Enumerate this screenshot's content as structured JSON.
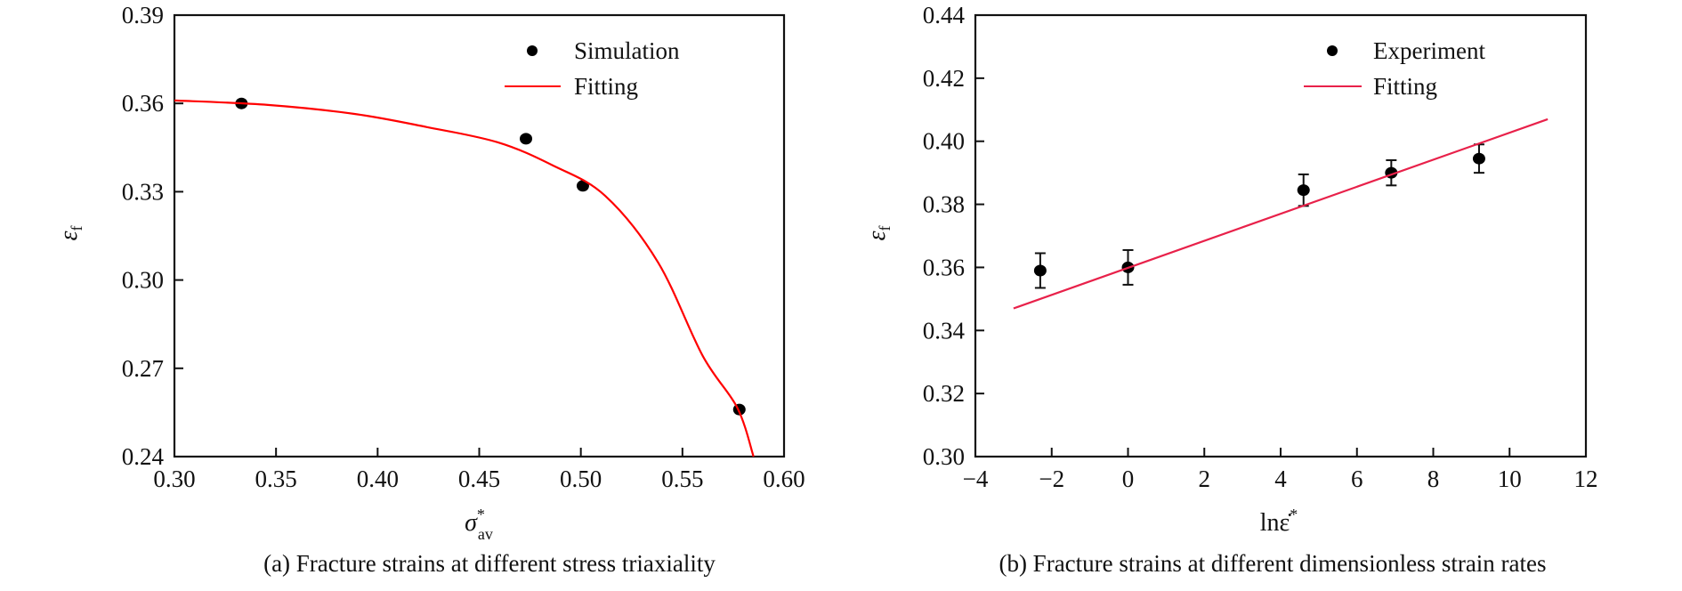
{
  "chart_data": [
    {
      "id": "a",
      "type": "scatter",
      "caption": "(a) Fracture strains at different stress triaxiality",
      "xlabel": "σ",
      "xlabel_sup": "*",
      "xlabel_sub": "av",
      "ylabel": "ε",
      "ylabel_sub": "f",
      "xlim": [
        0.3,
        0.6
      ],
      "ylim": [
        0.24,
        0.39
      ],
      "xticks": [
        0.3,
        0.35,
        0.4,
        0.45,
        0.5,
        0.55,
        0.6
      ],
      "xtick_labels": [
        "0.30",
        "0.35",
        "0.40",
        "0.45",
        "0.50",
        "0.55",
        "0.60"
      ],
      "yticks": [
        0.24,
        0.27,
        0.3,
        0.33,
        0.36,
        0.39
      ],
      "ytick_labels": [
        "0.24",
        "0.27",
        "0.30",
        "0.33",
        "0.36",
        "0.39"
      ],
      "grid": false,
      "legend_position": "top-right",
      "series": [
        {
          "name": "Simulation",
          "kind": "points",
          "color": "#000000",
          "x": [
            0.333,
            0.473,
            0.501,
            0.578
          ],
          "y": [
            0.36,
            0.348,
            0.332,
            0.256
          ]
        },
        {
          "name": "Fitting",
          "kind": "line",
          "color": "#FF0000",
          "x": [
            0.3,
            0.346,
            0.389,
            0.424,
            0.459,
            0.486,
            0.512,
            0.538,
            0.56,
            0.577,
            0.585
          ],
          "y": [
            0.361,
            0.3595,
            0.3564,
            0.352,
            0.3468,
            0.339,
            0.3286,
            0.306,
            0.2742,
            0.2566,
            0.24
          ]
        }
      ]
    },
    {
      "id": "b",
      "type": "scatter",
      "caption": "(b) Fracture strains at different dimensionless strain rates",
      "xlabel": "lnε̇",
      "xlabel_sup": "*",
      "ylabel": "ε",
      "ylabel_sub": "f",
      "xlim": [
        -4,
        12
      ],
      "ylim": [
        0.3,
        0.44
      ],
      "xticks": [
        -4,
        -2,
        0,
        2,
        4,
        6,
        8,
        10,
        12
      ],
      "xtick_labels": [
        "−4",
        "−2",
        "0",
        "2",
        "4",
        "6",
        "8",
        "10",
        "12"
      ],
      "yticks": [
        0.3,
        0.32,
        0.34,
        0.36,
        0.38,
        0.4,
        0.42,
        0.44
      ],
      "ytick_labels": [
        "0.30",
        "0.32",
        "0.34",
        "0.36",
        "0.38",
        "0.40",
        "0.42",
        "0.44"
      ],
      "grid": false,
      "legend_position": "top-right",
      "series": [
        {
          "name": "Experiment",
          "kind": "points",
          "color": "#000000",
          "x": [
            -2.3,
            0.0,
            4.6,
            6.9,
            9.2
          ],
          "y": [
            0.359,
            0.36,
            0.3845,
            0.39,
            0.3945
          ],
          "yerr": [
            0.0055,
            0.0055,
            0.005,
            0.004,
            0.0045
          ]
        },
        {
          "name": "Fitting",
          "kind": "line",
          "color": "#E8214A",
          "x": [
            -3,
            11
          ],
          "y": [
            0.347,
            0.407
          ]
        }
      ]
    }
  ]
}
